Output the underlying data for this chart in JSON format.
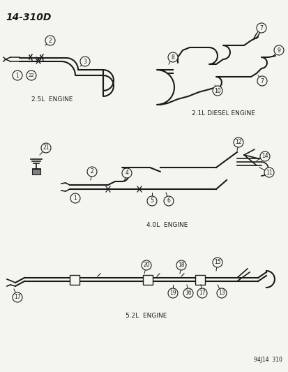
{
  "title": "14-310D",
  "background_color": "#f5f5f0",
  "line_color": "#1a1a1a",
  "label_2_5": "2.5L  ENGINE",
  "label_2_1": "2.1L DIESEL ENGINE",
  "label_4_0": "4.0L  ENGINE",
  "label_5_2": "5.2L  ENGINE",
  "footnote": "94J14  310",
  "figsize": [
    4.14,
    5.33
  ],
  "dpi": 100
}
